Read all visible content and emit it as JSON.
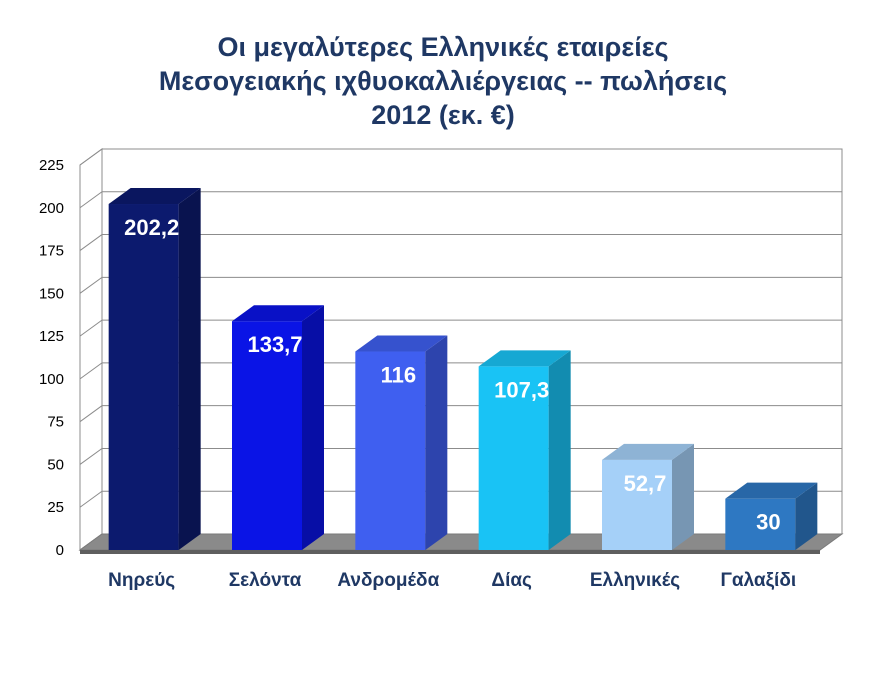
{
  "chart_data": {
    "type": "bar",
    "title_lines": [
      "Οι μεγαλύτερες Ελληνικές εταιρείες",
      "Μεσογειακής ιχθυοκαλλιέργειας --  πωλήσεις",
      "2012 (εκ. €)"
    ],
    "categories": [
      "Νηρεύς",
      "Σελόντα",
      "Ανδρομέδα",
      "Δίας",
      "Ελληνικές",
      "Γαλαξίδι"
    ],
    "values": [
      202.2,
      133.7,
      116,
      107.3,
      52.7,
      30
    ],
    "value_labels": [
      "202,2",
      "133,7",
      "116",
      "107,3",
      "52,7",
      "30"
    ],
    "bar_colors": [
      "#0c1a6e",
      "#0a14e6",
      "#3f5ff0",
      "#19c3f5",
      "#a5d0f8",
      "#2e78c2"
    ],
    "yticks": [
      "0",
      "25",
      "50",
      "75",
      "100",
      "125",
      "150",
      "175",
      "200",
      "225"
    ],
    "ylim": [
      0,
      225
    ],
    "xlabel": "",
    "ylabel": "",
    "grid": true,
    "legend": "none"
  }
}
